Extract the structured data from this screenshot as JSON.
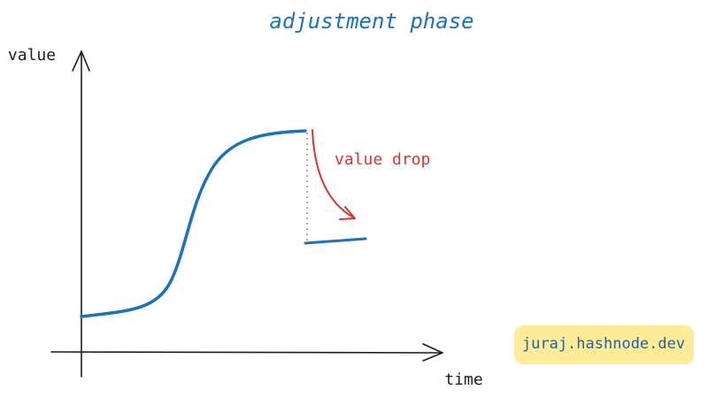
{
  "title": "adjustment phase",
  "axes": {
    "y_label": "value",
    "x_label": "time"
  },
  "annotation": "value drop",
  "badge": "juraj.hashnode.dev"
}
